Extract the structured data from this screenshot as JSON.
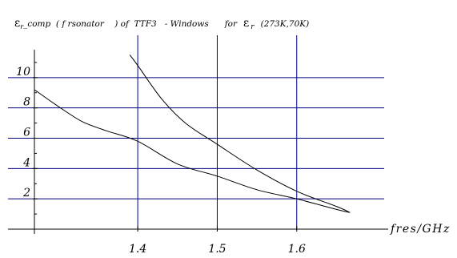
{
  "chart_data": {
    "type": "line",
    "title_parts": {
      "prefix_symbol": "ε",
      "prefix_sub": "r",
      "prefix_rest": "_comp  ( f rsonator    ) of  TTF3   - Windows      for",
      "eps_symbol": "ε",
      "eps_sub": "r",
      "suffix": "(273K,70K)"
    },
    "xlabel": "fres/GHz",
    "ylabel": "",
    "xlim": [
      1.27,
      1.71
    ],
    "ylim": [
      0,
      12
    ],
    "x_ticks": [
      {
        "value": 1.4,
        "label": "1.4"
      },
      {
        "value": 1.5,
        "label": "1.5"
      },
      {
        "value": 1.6,
        "label": "1.6"
      }
    ],
    "y_ticks": [
      {
        "value": 2,
        "label": "2"
      },
      {
        "value": 4,
        "label": "4"
      },
      {
        "value": 6,
        "label": "6"
      },
      {
        "value": 8,
        "label": "8"
      },
      {
        "value": 10,
        "label": "10"
      }
    ],
    "grid": true,
    "grid_color": "#000080",
    "line_color": "#000000",
    "series": [
      {
        "x": [
          1.27,
          1.3,
          1.33,
          1.36,
          1.4,
          1.45,
          1.5,
          1.55,
          1.6,
          1.65,
          1.667
        ],
        "y": [
          9.2,
          8.1,
          7.1,
          6.5,
          5.8,
          4.3,
          3.5,
          2.6,
          2.0,
          1.3,
          1.1
        ]
      },
      {
        "x": [
          1.39,
          1.4,
          1.43,
          1.46,
          1.5,
          1.55,
          1.6,
          1.65,
          1.667
        ],
        "y": [
          11.5,
          10.8,
          8.6,
          7.0,
          5.6,
          3.9,
          2.5,
          1.5,
          1.1
        ]
      }
    ]
  }
}
